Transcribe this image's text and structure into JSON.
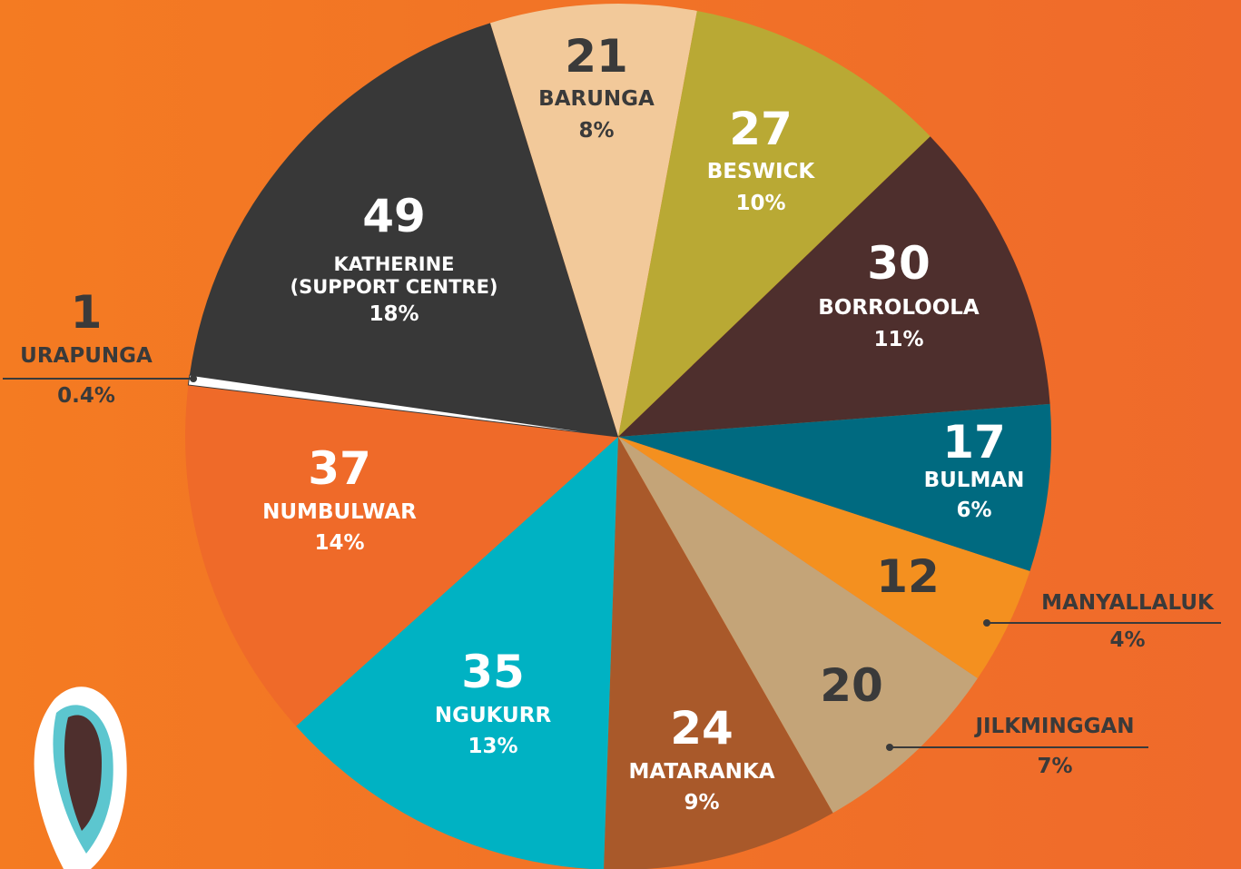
{
  "chart_data": {
    "type": "pie",
    "categories": [
      "BARUNGA",
      "BESWICK",
      "BORROLOOLA",
      "BULMAN",
      "MANYALLALUK",
      "JILKMINGGAN",
      "MATARANKA",
      "NGUKURR",
      "NUMBULWAR",
      "URAPUNGA",
      "KATHERINE\n(SUPPORT CENTRE)"
    ],
    "values": [
      21,
      27,
      30,
      17,
      12,
      20,
      24,
      35,
      37,
      1,
      49
    ],
    "percent_labels": [
      "8%",
      "10%",
      "11%",
      "6%",
      "4%",
      "7%",
      "9%",
      "13%",
      "14%",
      "0.4%",
      "18%"
    ],
    "colors": [
      "#f2c99a",
      "#b9a934",
      "#4e2f2d",
      "#006a80",
      "#f4901f",
      "#c4a478",
      "#a9592a",
      "#00b2c3",
      "#ef6a29",
      "#ffffff",
      "#383838"
    ]
  }
}
